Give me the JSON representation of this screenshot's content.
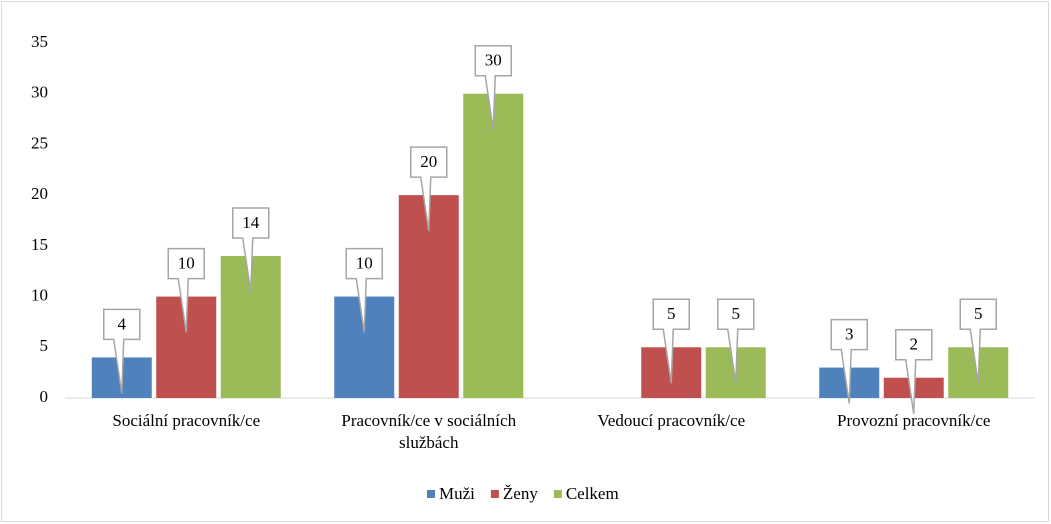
{
  "chart_data": {
    "type": "bar",
    "categories": [
      "Sociální pracovník/ce",
      "Pracovník/ce v sociálních službách",
      "Vedoucí pracovník/ce",
      "Provozní pracovník/ce"
    ],
    "series": [
      {
        "name": "Muži",
        "color": "#4f81bd",
        "values": [
          4,
          10,
          null,
          3
        ]
      },
      {
        "name": "Ženy",
        "color": "#c0504d",
        "values": [
          10,
          20,
          5,
          2
        ]
      },
      {
        "name": "Celkem",
        "color": "#9bbb59",
        "values": [
          14,
          30,
          5,
          5
        ]
      }
    ],
    "ylim": [
      0,
      35
    ],
    "yticks": [
      0,
      5,
      10,
      15,
      20,
      25,
      30,
      35
    ],
    "grid": false,
    "legend": "bottom"
  }
}
